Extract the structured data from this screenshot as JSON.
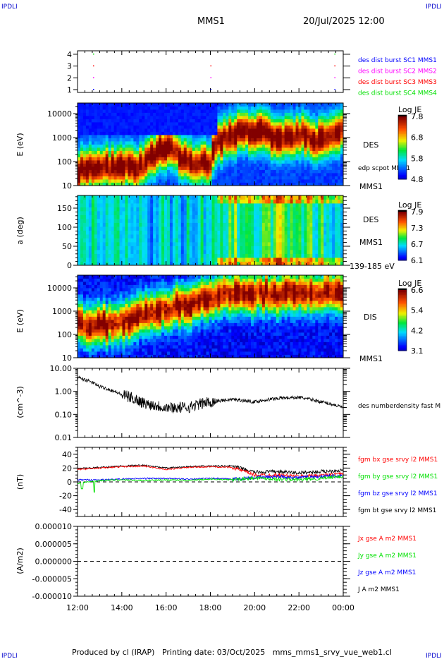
{
  "corner_label": "IPDLI",
  "header": {
    "spacecraft": "MMS1",
    "datetime": "20/Jul/2025 12:00"
  },
  "footer": "Produced by cl (IRAP)   Printing date: 03/Oct/2025   mms_mms1_srvy_vue_web1.cl",
  "colors": {
    "sc1": "#0000ff",
    "sc2": "#ff00ff",
    "sc3": "#ff0000",
    "sc4": "#00e000",
    "bx": "#ff0000",
    "by": "#00e000",
    "bz": "#0000ff",
    "bt": "#000000"
  },
  "time_axis": {
    "ticks": [
      "12:00",
      "14:00",
      "16:00",
      "18:00",
      "20:00",
      "22:00",
      "00:00"
    ],
    "range_hours": [
      12,
      24
    ]
  },
  "chart_data": [
    {
      "type": "scatter",
      "panel": "burst",
      "yticks": [
        "1",
        "2",
        "3",
        "4"
      ],
      "legend": [
        "des dist burst SC1 MMS1",
        "des dist burst SC2 MMS2",
        "des dist burst SC3 MMS3",
        "des dist burst SC4 MMS4"
      ],
      "burst_times_hours": [
        12.7,
        18.0,
        23.6
      ]
    },
    {
      "type": "heatmap",
      "panel": "des-energy",
      "ylabel": "E (eV)",
      "yscale": "log",
      "yticks": [
        "10",
        "100",
        "1000",
        "10000"
      ],
      "labels": [
        "DES",
        "edp scpot MMS1",
        "MMS1"
      ],
      "colorbar": {
        "title": "Log JE",
        "ticks": [
          "4.8",
          "5.8",
          "6.8",
          "7.8"
        ],
        "range": [
          4.8,
          7.8
        ]
      },
      "peak_energy_eV_hourly": [
        40,
        60,
        60,
        70,
        400,
        80,
        90,
        1500,
        2000,
        900,
        1500,
        700,
        2000
      ]
    },
    {
      "type": "heatmap",
      "panel": "des-pitch-angle",
      "ylabel": "a (deg)",
      "yticks": [
        "0",
        "50",
        "100",
        "150"
      ],
      "labels": [
        "DES",
        "MMS1",
        "139-185 eV"
      ],
      "colorbar": {
        "title": "Log JE",
        "ticks": [
          "6.1",
          "6.7",
          "7.3",
          "7.9"
        ],
        "range": [
          6.1,
          7.9
        ]
      },
      "level_hourly": [
        6.75,
        6.6,
        6.55,
        6.5,
        6.6,
        6.6,
        6.8,
        6.9,
        6.85,
        7.0,
        6.9,
        6.8,
        6.7
      ]
    },
    {
      "type": "heatmap",
      "panel": "dis-energy",
      "ylabel": "E (eV)",
      "yscale": "log",
      "yticks": [
        "10",
        "100",
        "1000",
        "10000"
      ],
      "labels": [
        "DIS",
        "MMS1"
      ],
      "colorbar": {
        "title": "Log JE",
        "ticks": [
          "3.1",
          "4.2",
          "5.4",
          "6.6"
        ],
        "range": [
          3.1,
          6.6
        ]
      },
      "peak_energy_eV_hourly": [
        300,
        250,
        300,
        700,
        1200,
        2000,
        3500,
        6000,
        6000,
        5500,
        6000,
        6000,
        6000
      ]
    },
    {
      "type": "line",
      "panel": "density",
      "ylabel": "(cm^-3)",
      "yscale": "log",
      "yticks": [
        "0.01",
        "0.10",
        "1.00",
        "10.00"
      ],
      "ylim": [
        0.01,
        10
      ],
      "series": [
        {
          "name": "des numberdensity fast M",
          "x_hours": [
            12,
            13,
            14,
            15,
            16,
            17,
            18,
            19,
            20,
            21,
            22,
            23,
            24
          ],
          "values": [
            4.0,
            1.6,
            0.7,
            0.3,
            0.2,
            0.2,
            0.35,
            0.45,
            0.35,
            0.5,
            0.55,
            0.35,
            0.2
          ]
        }
      ]
    },
    {
      "type": "line",
      "panel": "magnetic-field",
      "ylabel": "(nT)",
      "yticks": [
        "-40",
        "-20",
        "0",
        "20",
        "40"
      ],
      "ylim": [
        -50,
        50
      ],
      "x_hours": [
        12,
        13,
        14,
        15,
        16,
        17,
        18,
        19,
        20,
        21,
        22,
        23,
        24
      ],
      "series": [
        {
          "name": "fgm bx gse srvy l2 MMS1",
          "values": [
            18,
            20,
            22,
            23,
            18,
            21,
            22,
            21,
            10,
            10,
            8,
            10,
            12
          ]
        },
        {
          "name": "fgm by gse srvy l2 MMS1",
          "values": [
            -2,
            2,
            3,
            2,
            3,
            2,
            4,
            3,
            6,
            4,
            3,
            5,
            8
          ]
        },
        {
          "name": "fgm bz gse srvy l2 MMS1",
          "values": [
            3,
            3,
            4,
            5,
            5,
            4,
            5,
            4,
            6,
            8,
            6,
            8,
            9
          ]
        },
        {
          "name": "fgm bt gse srvy l2 MMS1",
          "values": [
            19,
            21,
            23,
            24,
            20,
            22,
            23,
            23,
            14,
            15,
            13,
            15,
            17
          ]
        }
      ]
    },
    {
      "type": "line",
      "panel": "current-density",
      "ylabel": "(A/m2)",
      "yticks": [
        "-0.000010",
        "-0.000005",
        "0.000000",
        "0.000005",
        "0.000010"
      ],
      "ylim": [
        -1e-05,
        1e-05
      ],
      "series": [
        {
          "name": "Jx gse A m2 MMS1",
          "color": "#ff0000"
        },
        {
          "name": "Jy gse A m2 MMS1",
          "color": "#00e000"
        },
        {
          "name": "Jz gse A m2 MMS1",
          "color": "#0000ff"
        },
        {
          "name": "J A m2 MMS1",
          "color": "#000000"
        }
      ]
    }
  ]
}
